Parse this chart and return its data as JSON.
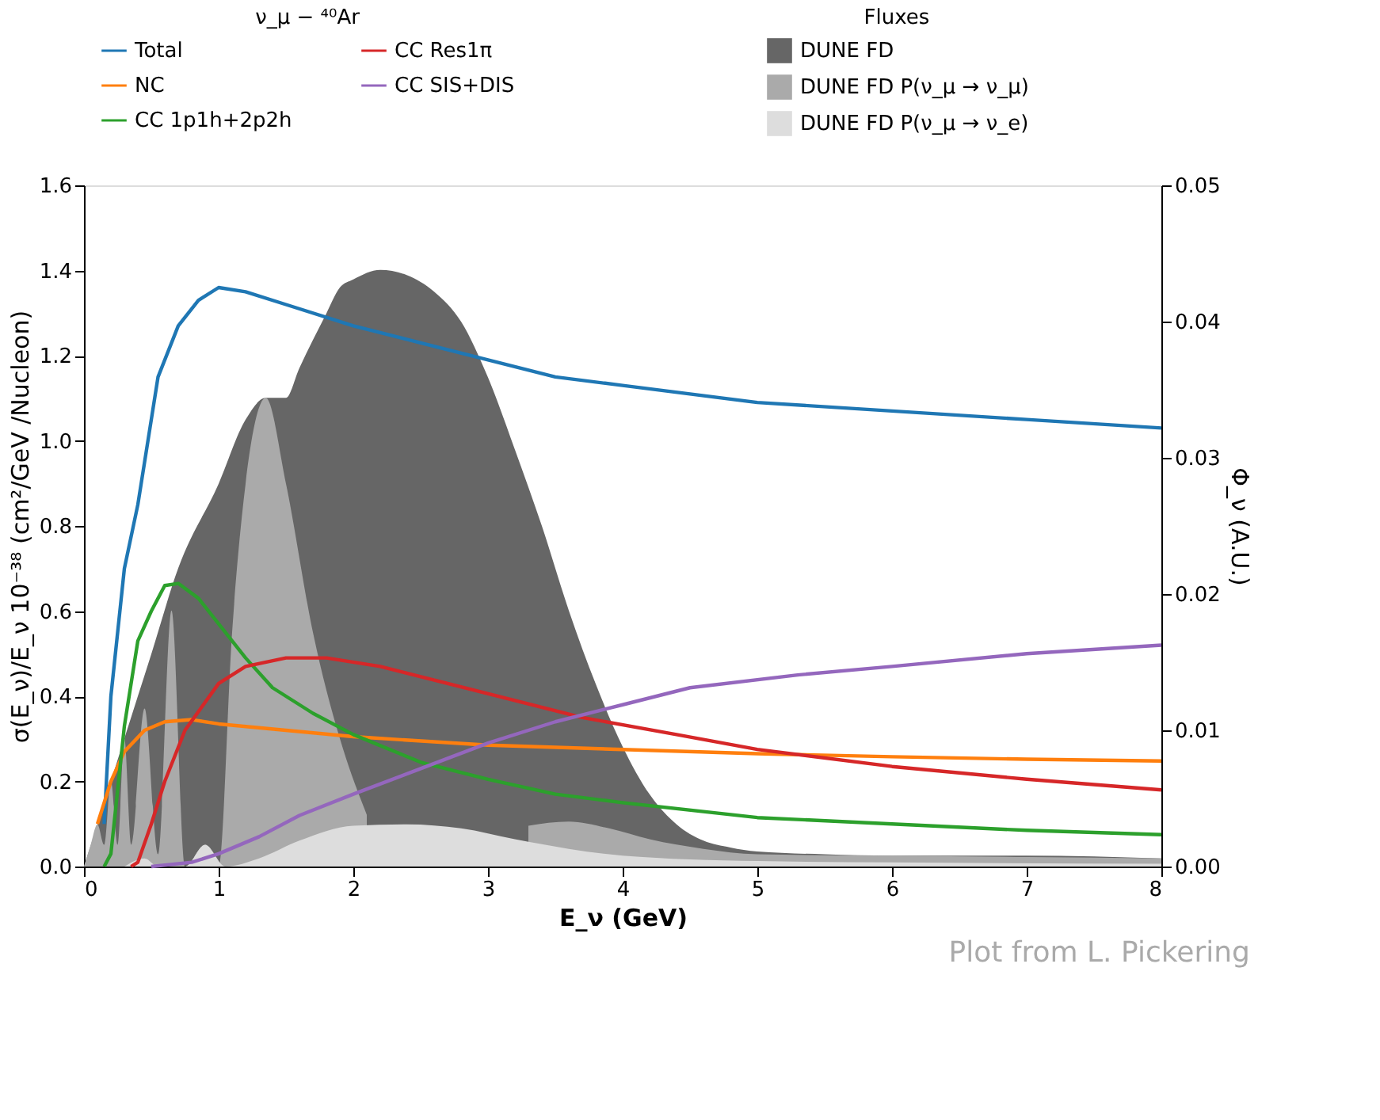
{
  "chart_data": {
    "type": "line",
    "xlabel": "E_ν (GeV)",
    "ylabel": "σ(E_ν)/E_ν 10⁻³⁸ (cm²/GeV /Nucleon)",
    "y2label": "Φ_ν (A.U.)",
    "legend_title": [
      "ν_μ − ⁴⁰Ar",
      "Fluxes"
    ],
    "annotations": [
      "Plot from L. Pickering"
    ],
    "xlim": [
      0,
      8
    ],
    "xticks": [
      0,
      1,
      2,
      3,
      4,
      5,
      6,
      7,
      8
    ],
    "ylim": [
      0,
      1.6
    ],
    "yticks": [
      {
        "value": 0,
        "label": "0.0"
      },
      0.2,
      0.4,
      0.6,
      0.8,
      {
        "value": 1,
        "label": "1.0"
      },
      1.2,
      1.4,
      1.6
    ],
    "y2lim": [
      0,
      0.05
    ],
    "y2ticks": [
      {
        "value": 0,
        "label": "0.00"
      },
      0.01,
      0.02,
      0.03,
      0.04,
      0.05
    ],
    "grid": false,
    "legend": "top",
    "marker": "none",
    "line_style": "solid",
    "series": [
      {
        "name": "DUNE FD",
        "type": "area",
        "axis": "y2",
        "color": "#666666",
        "x": [
          0,
          0.1,
          0.3,
          0.5,
          0.7,
          1.0,
          1.2,
          1.35,
          1.5,
          1.6,
          1.8,
          1.9,
          2.0,
          2.2,
          2.4,
          2.6,
          2.8,
          3.0,
          3.2,
          3.4,
          3.6,
          3.8,
          4.0,
          4.2,
          4.4,
          4.6,
          4.8,
          5.0,
          5.5,
          6,
          7,
          8
        ],
        "values": [
          0,
          0.0031,
          0.0094,
          0.0156,
          0.0219,
          0.0281,
          0.0328,
          0.0344,
          0.0344,
          0.0366,
          0.0406,
          0.0425,
          0.0431,
          0.0438,
          0.0434,
          0.0422,
          0.04,
          0.0359,
          0.0306,
          0.025,
          0.0188,
          0.0134,
          0.0088,
          0.0053,
          0.0031,
          0.0019,
          0.0014,
          0.0011,
          0.0009,
          0.0008,
          0.0008,
          0.0006
        ]
      },
      {
        "name": "DUNE FD P(ν_μ → ν_μ)",
        "type": "area",
        "axis": "y2",
        "color": "#aaaaaa",
        "x": [
          0,
          0.05,
          0.1,
          0.15,
          0.2,
          0.25,
          0.3,
          0.35,
          0.45,
          0.55,
          0.65,
          0.75,
          0.9,
          1.0,
          1.1,
          1.2,
          1.35,
          1.5,
          1.7,
          1.9,
          2.1,
          2.3,
          2.5,
          2.7,
          3.0,
          3.3,
          3.6,
          3.9,
          4.2,
          4.6,
          5,
          6,
          7,
          8
        ],
        "values": [
          0,
          0.0016,
          0.0031,
          0.0016,
          0.0063,
          0.0016,
          0.0094,
          0.0016,
          0.0116,
          0.0009,
          0.0188,
          0,
          0.0016,
          0,
          0.0172,
          0.0281,
          0.0344,
          0.0281,
          0.0172,
          0.0094,
          0.0038,
          null,
          null,
          null,
          null,
          0.003,
          0.0033,
          0.0028,
          0.002,
          0.0013,
          0.0009,
          0.0008,
          0.0007,
          0.0006
        ]
      },
      {
        "name": "DUNE FD P(ν_μ → ν_e)",
        "type": "area",
        "axis": "y2",
        "color": "#dddddd",
        "x": [
          0.3,
          0.45,
          0.55,
          0.75,
          0.9,
          1.05,
          1.3,
          1.6,
          2.0,
          2.4,
          2.8,
          3.2,
          3.6,
          4,
          5,
          6,
          8
        ],
        "values": [
          0,
          0.0006,
          0,
          0,
          0.0016,
          0,
          0.0006,
          0.0019,
          0.003,
          0.0031,
          0.0028,
          0.002,
          0.0013,
          0.0008,
          0.0004,
          0.0003,
          0.0002
        ]
      },
      {
        "name": "Total",
        "color": "#1f77b4",
        "x": [
          0.15,
          0.2,
          0.3,
          0.4,
          0.55,
          0.7,
          0.85,
          1.0,
          1.2,
          1.5,
          2.0,
          2.5,
          3.0,
          3.5,
          4,
          5,
          6,
          7,
          8
        ],
        "values": [
          0.1,
          0.4,
          0.7,
          0.85,
          1.15,
          1.27,
          1.33,
          1.36,
          1.35,
          1.32,
          1.27,
          1.23,
          1.19,
          1.15,
          1.13,
          1.09,
          1.07,
          1.05,
          1.03
        ]
      },
      {
        "name": "NC",
        "color": "#ff7f0e",
        "x": [
          0.1,
          0.2,
          0.3,
          0.45,
          0.6,
          0.8,
          1,
          1.5,
          2,
          3,
          4,
          5,
          6,
          7,
          8
        ],
        "values": [
          0.1,
          0.2,
          0.27,
          0.32,
          0.34,
          0.345,
          0.335,
          0.32,
          0.305,
          0.285,
          0.275,
          0.265,
          0.258,
          0.252,
          0.248
        ]
      },
      {
        "name": "CC 1p1h+2p2h",
        "color": "#2ca02c",
        "x": [
          0.15,
          0.2,
          0.3,
          0.4,
          0.5,
          0.6,
          0.7,
          0.85,
          1,
          1.2,
          1.4,
          1.7,
          2,
          2.5,
          3,
          3.5,
          4,
          5,
          6,
          7,
          8
        ],
        "values": [
          0.0,
          0.03,
          0.33,
          0.53,
          0.6,
          0.66,
          0.665,
          0.63,
          0.57,
          0.49,
          0.42,
          0.36,
          0.31,
          0.245,
          0.205,
          0.17,
          0.15,
          0.115,
          0.1,
          0.085,
          0.075
        ]
      },
      {
        "name": "CC Res1π",
        "color": "#d62728",
        "x": [
          0.35,
          0.4,
          0.5,
          0.6,
          0.75,
          1.0,
          1.2,
          1.5,
          1.8,
          2.2,
          2.7,
          3.2,
          3.7,
          4.4,
          5,
          6,
          7,
          8
        ],
        "values": [
          0,
          0.01,
          0.1,
          0.2,
          0.32,
          0.43,
          0.47,
          0.49,
          0.49,
          0.47,
          0.43,
          0.39,
          0.35,
          0.31,
          0.275,
          0.235,
          0.205,
          0.18
        ]
      },
      {
        "name": "CC SIS+DIS",
        "color": "#9467bd",
        "x": [
          0.5,
          0.8,
          1.0,
          1.3,
          1.6,
          2,
          2.5,
          3,
          3.5,
          4,
          4.5,
          5.3,
          6,
          7,
          8
        ],
        "values": [
          0,
          0.01,
          0.03,
          0.07,
          0.12,
          0.17,
          0.23,
          0.29,
          0.34,
          0.38,
          0.42,
          0.45,
          0.47,
          0.5,
          0.52
        ]
      }
    ]
  }
}
